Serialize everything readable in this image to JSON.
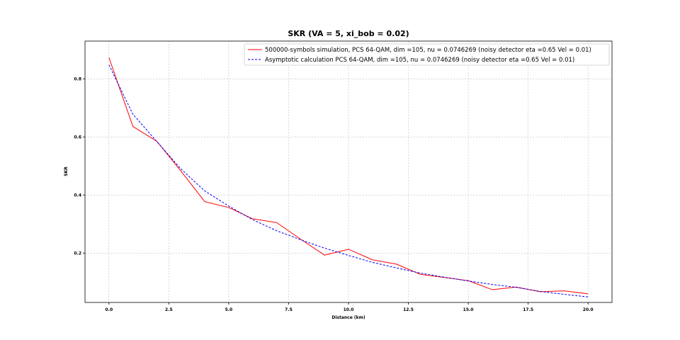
{
  "chart_data": {
    "type": "line",
    "title": "SKR (VA = 5, xi_bob = 0.02)",
    "xlabel": "Distance (km)",
    "ylabel": "SKR",
    "xlim": [
      -1.0,
      21.0
    ],
    "ylim": [
      0.03,
      0.93
    ],
    "xticks": [
      0.0,
      2.5,
      5.0,
      7.5,
      10.0,
      12.5,
      15.0,
      17.5,
      20.0
    ],
    "xtick_labels": [
      "0.0",
      "2.5",
      "5.0",
      "7.5",
      "10.0",
      "12.5",
      "15.0",
      "17.5",
      "20.0"
    ],
    "yticks": [
      0.2,
      0.4,
      0.6,
      0.8
    ],
    "ytick_labels": [
      "0.2",
      "0.4",
      "0.6",
      "0.8"
    ],
    "grid": true,
    "legend_position": "top-right",
    "series": [
      {
        "name": "500000-symbols simulation, PCS 64-QAM, dim =105, nu = 0.0746269 (noisy detector eta =0.65 Vel = 0.01)",
        "color": "#ff0000",
        "style": "solid",
        "x": [
          0,
          1,
          2,
          3,
          4,
          5,
          6,
          7,
          8,
          9,
          10,
          11,
          12,
          13,
          14,
          15,
          16,
          17,
          18,
          19,
          20
        ],
        "values": [
          0.873,
          0.636,
          0.585,
          0.483,
          0.377,
          0.357,
          0.318,
          0.305,
          0.248,
          0.193,
          0.213,
          0.177,
          0.162,
          0.127,
          0.116,
          0.105,
          0.074,
          0.083,
          0.067,
          0.07,
          0.06
        ]
      },
      {
        "name": "Asymptotic calculation PCS 64-QAM, dim =105, nu = 0.0746269 (noisy detector eta =0.65 Vel = 0.01)",
        "color": "#0000ff",
        "style": "dashed",
        "x": [
          0,
          1,
          2,
          3,
          4,
          5,
          6,
          7,
          8,
          9,
          10,
          11,
          12,
          13,
          14,
          15,
          16,
          17,
          18,
          19,
          20
        ],
        "values": [
          0.848,
          0.678,
          0.584,
          0.49,
          0.414,
          0.362,
          0.315,
          0.277,
          0.246,
          0.217,
          0.192,
          0.168,
          0.149,
          0.131,
          0.117,
          0.104,
          0.092,
          0.082,
          0.068,
          0.058,
          0.049
        ]
      }
    ]
  }
}
